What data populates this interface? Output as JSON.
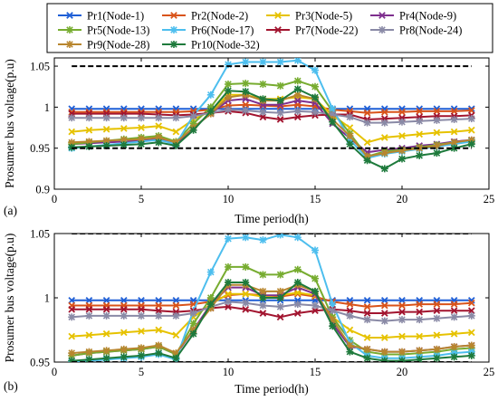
{
  "legend": {
    "entries": [
      {
        "label": "Pr1(Node-1)",
        "color": "#1f5fd6",
        "marker": "x"
      },
      {
        "label": "Pr2(Node-2)",
        "color": "#d95319",
        "marker": "x"
      },
      {
        "label": "Pr3(Node-5)",
        "color": "#e6c200",
        "marker": "x"
      },
      {
        "label": "Pr4(Node-9)",
        "color": "#7e2f8e",
        "marker": "x"
      },
      {
        "label": "Pr5(Node-13)",
        "color": "#77ac30",
        "marker": "asterisk"
      },
      {
        "label": "Pr6(Node-17)",
        "color": "#4dbeee",
        "marker": "asterisk"
      },
      {
        "label": "Pr7(Node-22)",
        "color": "#a2142f",
        "marker": "x"
      },
      {
        "label": "Pr8(Node-24)",
        "color": "#8a8aa6",
        "marker": "asterisk"
      },
      {
        "label": "Pr9(Node-28)",
        "color": "#b8862e",
        "marker": "asterisk"
      },
      {
        "label": "Pr10(Node-32)",
        "color": "#1e7a3c",
        "marker": "asterisk"
      }
    ]
  },
  "limit_line_color": "#000000",
  "chart_data": [
    {
      "type": "line",
      "panel_label": "(a)",
      "xlabel": "Time period(h)",
      "ylabel": "Prosumer bus voltage(p.u)",
      "xlim": [
        0,
        25
      ],
      "ylim": [
        0.9,
        1.06
      ],
      "xticks": [
        0,
        5,
        10,
        15,
        20,
        25
      ],
      "yticks": [
        0.9,
        0.95,
        1,
        1.05
      ],
      "ytick_labels": [
        "0.9",
        "0.95",
        "1",
        "1.05"
      ],
      "grid": false,
      "limit_lines": [
        1.05,
        0.95
      ],
      "x": [
        1,
        2,
        3,
        4,
        5,
        6,
        7,
        8,
        9,
        10,
        11,
        12,
        13,
        14,
        15,
        16,
        17,
        18,
        19,
        20,
        21,
        22,
        23,
        24
      ],
      "series": [
        {
          "name": "Pr1(Node-1)",
          "values": [
            0.998,
            0.998,
            0.998,
            0.998,
            0.998,
            0.998,
            0.998,
            0.998,
            0.998,
            0.998,
            0.998,
            0.998,
            0.998,
            0.998,
            0.998,
            0.998,
            0.998,
            0.998,
            0.998,
            0.998,
            0.998,
            0.998,
            0.998,
            0.998
          ]
        },
        {
          "name": "Pr2(Node-2)",
          "values": [
            0.994,
            0.994,
            0.994,
            0.994,
            0.994,
            0.994,
            0.994,
            0.995,
            0.997,
            1.002,
            1.003,
            1.002,
            1.001,
            1.003,
            1.001,
            0.997,
            0.995,
            0.993,
            0.994,
            0.994,
            0.995,
            0.995,
            0.995,
            0.996
          ]
        },
        {
          "name": "Pr3(Node-5)",
          "values": [
            0.97,
            0.972,
            0.973,
            0.974,
            0.975,
            0.977,
            0.97,
            0.985,
            0.995,
            1.015,
            1.015,
            1.01,
            1.01,
            1.012,
            1.01,
            0.99,
            0.975,
            0.957,
            0.963,
            0.965,
            0.967,
            0.969,
            0.97,
            0.972
          ]
        },
        {
          "name": "Pr4(Node-9)",
          "values": [
            0.955,
            0.956,
            0.957,
            0.958,
            0.959,
            0.961,
            0.955,
            0.975,
            0.992,
            1.008,
            1.01,
            1.003,
            1.003,
            1.008,
            1.005,
            0.98,
            0.962,
            0.945,
            0.948,
            0.95,
            0.953,
            0.955,
            0.958,
            0.96
          ]
        },
        {
          "name": "Pr5(Node-13)",
          "values": [
            0.955,
            0.957,
            0.959,
            0.961,
            0.963,
            0.965,
            0.958,
            0.98,
            1.0,
            1.028,
            1.029,
            1.028,
            1.026,
            1.032,
            1.025,
            0.995,
            0.968,
            0.94,
            0.946,
            0.948,
            0.951,
            0.954,
            0.957,
            0.959
          ]
        },
        {
          "name": "Pr6(Node-17)",
          "values": [
            0.95,
            0.952,
            0.954,
            0.956,
            0.958,
            0.96,
            0.955,
            0.99,
            1.015,
            1.052,
            1.055,
            1.055,
            1.055,
            1.057,
            1.045,
            0.998,
            0.96,
            0.938,
            0.943,
            0.946,
            0.949,
            0.952,
            0.955,
            0.958
          ]
        },
        {
          "name": "Pr7(Node-22)",
          "values": [
            0.992,
            0.992,
            0.992,
            0.992,
            0.992,
            0.991,
            0.99,
            0.991,
            0.993,
            0.995,
            0.993,
            0.988,
            0.985,
            0.988,
            0.99,
            0.991,
            0.991,
            0.985,
            0.986,
            0.987,
            0.988,
            0.989,
            0.989,
            0.99
          ]
        },
        {
          "name": "Pr8(Node-24)",
          "values": [
            0.987,
            0.987,
            0.987,
            0.987,
            0.987,
            0.987,
            0.987,
            0.989,
            0.993,
            0.997,
            0.996,
            0.994,
            0.993,
            0.995,
            0.994,
            0.991,
            0.988,
            0.981,
            0.981,
            0.982,
            0.983,
            0.984,
            0.985,
            0.986
          ]
        },
        {
          "name": "Pr9(Node-28)",
          "values": [
            0.957,
            0.958,
            0.959,
            0.96,
            0.961,
            0.963,
            0.957,
            0.975,
            0.992,
            1.012,
            1.015,
            1.008,
            1.008,
            1.015,
            1.01,
            0.985,
            0.965,
            0.94,
            0.944,
            0.947,
            0.95,
            0.953,
            0.957,
            0.96
          ]
        },
        {
          "name": "Pr10(Node-32)",
          "values": [
            0.951,
            0.952,
            0.953,
            0.954,
            0.955,
            0.957,
            0.953,
            0.972,
            0.995,
            1.02,
            1.019,
            1.01,
            1.008,
            1.022,
            1.012,
            0.982,
            0.955,
            0.935,
            0.925,
            0.937,
            0.941,
            0.944,
            0.95,
            0.955
          ]
        }
      ]
    },
    {
      "type": "line",
      "panel_label": "(b)",
      "xlabel": "Time period(h)",
      "ylabel": "Prosumer bus voltage(p.u)",
      "xlim": [
        0,
        25
      ],
      "ylim": [
        0.95,
        1.05
      ],
      "xticks": [
        0,
        5,
        10,
        15,
        20,
        25
      ],
      "yticks": [
        0.95,
        1,
        1.05
      ],
      "ytick_labels": [
        "0.95",
        "1",
        "1.05"
      ],
      "grid": false,
      "limit_lines": [
        1.05,
        0.95
      ],
      "x": [
        1,
        2,
        3,
        4,
        5,
        6,
        7,
        8,
        9,
        10,
        11,
        12,
        13,
        14,
        15,
        16,
        17,
        18,
        19,
        20,
        21,
        22,
        23,
        24
      ],
      "series": [
        {
          "name": "Pr1(Node-1)",
          "values": [
            0.998,
            0.998,
            0.998,
            0.998,
            0.998,
            0.998,
            0.998,
            0.998,
            0.998,
            0.998,
            0.998,
            0.998,
            0.998,
            0.998,
            0.998,
            0.998,
            0.998,
            0.998,
            0.998,
            0.998,
            0.998,
            0.998,
            0.998,
            0.998
          ]
        },
        {
          "name": "Pr2(Node-2)",
          "values": [
            0.994,
            0.994,
            0.994,
            0.994,
            0.994,
            0.994,
            0.994,
            0.995,
            0.997,
            1.002,
            1.003,
            1.002,
            1.001,
            1.003,
            1.001,
            0.997,
            0.995,
            0.993,
            0.994,
            0.994,
            0.995,
            0.995,
            0.995,
            0.996
          ]
        },
        {
          "name": "Pr3(Node-5)",
          "values": [
            0.97,
            0.971,
            0.972,
            0.973,
            0.974,
            0.975,
            0.971,
            0.985,
            0.995,
            1.003,
            1.003,
            1.001,
            1.002,
            1.004,
            1.002,
            0.985,
            0.975,
            0.969,
            0.969,
            0.97,
            0.97,
            0.971,
            0.972,
            0.973
          ]
        },
        {
          "name": "Pr4(Node-9)",
          "values": [
            0.955,
            0.957,
            0.958,
            0.959,
            0.96,
            0.962,
            0.956,
            0.975,
            0.995,
            1.008,
            1.008,
            1.002,
            1.002,
            1.008,
            1.003,
            0.98,
            0.962,
            0.96,
            0.958,
            0.958,
            0.959,
            0.96,
            0.962,
            0.963
          ]
        },
        {
          "name": "Pr5(Node-13)",
          "values": [
            0.955,
            0.957,
            0.958,
            0.959,
            0.96,
            0.962,
            0.956,
            0.98,
            1.0,
            1.024,
            1.024,
            1.018,
            1.018,
            1.022,
            1.015,
            0.985,
            0.967,
            0.958,
            0.956,
            0.956,
            0.957,
            0.958,
            0.96,
            0.961
          ]
        },
        {
          "name": "Pr6(Node-17)",
          "values": [
            0.95,
            0.951,
            0.952,
            0.953,
            0.954,
            0.956,
            0.952,
            0.99,
            1.02,
            1.046,
            1.047,
            1.045,
            1.049,
            1.047,
            1.037,
            0.995,
            0.965,
            0.955,
            0.953,
            0.953,
            0.954,
            0.955,
            0.957,
            0.958
          ]
        },
        {
          "name": "Pr7(Node-22)",
          "values": [
            0.991,
            0.991,
            0.991,
            0.991,
            0.991,
            0.99,
            0.989,
            0.99,
            0.992,
            0.993,
            0.991,
            0.988,
            0.985,
            0.988,
            0.99,
            0.991,
            0.99,
            0.988,
            0.988,
            0.989,
            0.989,
            0.99,
            0.99,
            0.99
          ]
        },
        {
          "name": "Pr8(Node-24)",
          "values": [
            0.985,
            0.986,
            0.986,
            0.986,
            0.986,
            0.986,
            0.986,
            0.988,
            0.993,
            0.997,
            0.996,
            0.994,
            0.993,
            0.995,
            0.994,
            0.99,
            0.986,
            0.983,
            0.982,
            0.983,
            0.983,
            0.984,
            0.985,
            0.986
          ]
        },
        {
          "name": "Pr9(Node-28)",
          "values": [
            0.957,
            0.958,
            0.959,
            0.96,
            0.961,
            0.963,
            0.957,
            0.975,
            0.992,
            1.01,
            1.01,
            1.005,
            1.005,
            1.01,
            1.005,
            0.983,
            0.963,
            0.96,
            0.958,
            0.958,
            0.959,
            0.96,
            0.962,
            0.963
          ]
        },
        {
          "name": "Pr10(Node-32)",
          "values": [
            0.951,
            0.952,
            0.953,
            0.954,
            0.955,
            0.957,
            0.953,
            0.972,
            0.995,
            1.012,
            1.012,
            1.0,
            1.0,
            1.012,
            1.005,
            0.978,
            0.958,
            0.953,
            0.951,
            0.951,
            0.952,
            0.953,
            0.954,
            0.955
          ]
        }
      ]
    }
  ]
}
